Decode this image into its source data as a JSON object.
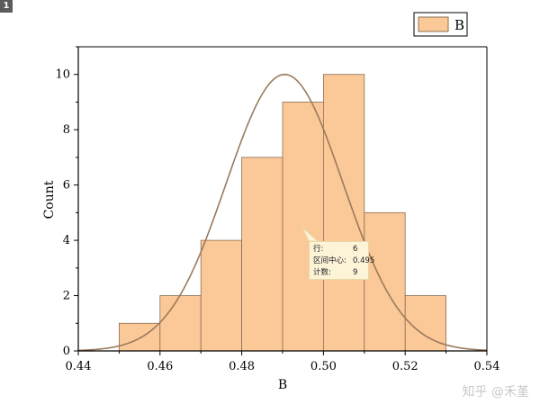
{
  "badge": "1",
  "watermark": "知乎 @禾堇",
  "chart_data": {
    "type": "bar",
    "subtype": "histogram",
    "bins": [
      {
        "start": 0.45,
        "end": 0.46,
        "count": 1
      },
      {
        "start": 0.46,
        "end": 0.47,
        "count": 2
      },
      {
        "start": 0.47,
        "end": 0.48,
        "count": 4
      },
      {
        "start": 0.48,
        "end": 0.49,
        "count": 7
      },
      {
        "start": 0.49,
        "end": 0.5,
        "count": 9
      },
      {
        "start": 0.5,
        "end": 0.51,
        "count": 10
      },
      {
        "start": 0.51,
        "end": 0.52,
        "count": 5
      },
      {
        "start": 0.52,
        "end": 0.53,
        "count": 2
      }
    ],
    "fit_curve": {
      "type": "normal",
      "mean": 0.4905,
      "sd": 0.0143,
      "peak": 10
    },
    "xlabel": "B",
    "ylabel": "Count",
    "xlim": [
      0.44,
      0.54
    ],
    "ylim": [
      0,
      11
    ],
    "xticks": [
      "0.44",
      "0.46",
      "0.48",
      "0.50",
      "0.52",
      "0.54"
    ],
    "yticks": [
      "0",
      "2",
      "4",
      "6",
      "8",
      "10"
    ],
    "legend": {
      "label": "B",
      "position": "top-right"
    },
    "grid": false,
    "colors": {
      "bar_fill": "#fbc897",
      "bar_edge": "#8a6f55",
      "curve": "#9b7a5c",
      "axis": "#000000"
    }
  },
  "tooltip": {
    "rows": [
      {
        "label": "行:",
        "value": "6"
      },
      {
        "label": "区间中心:",
        "value": "0.495"
      },
      {
        "label": "计数:",
        "value": "9"
      }
    ]
  }
}
